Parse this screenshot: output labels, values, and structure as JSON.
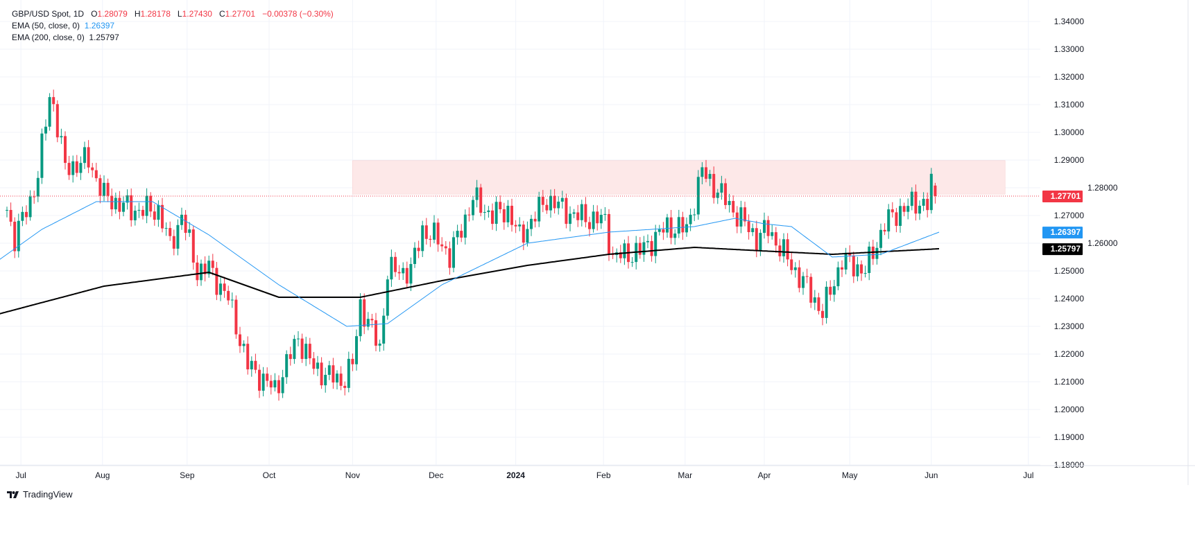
{
  "legend": {
    "symbol": "GBP/USD Spot, 1D",
    "open_label": "O",
    "open": "1.28079",
    "high_label": "H",
    "high": "1.28178",
    "low_label": "L",
    "low": "1.27430",
    "close_label": "C",
    "close": "1.27701",
    "change": "−0.00378 (−0.30%)",
    "ema50_label": "EMA (50, close, 0)",
    "ema50_value": "1.26397",
    "ema200_label": "EMA (200, close, 0)",
    "ema200_value": "1.25797"
  },
  "branding": "TradingView",
  "colors": {
    "up": "#089981",
    "down": "#f23645",
    "ema50": "#2196f3",
    "ema200": "#000000",
    "zone": "#fde8e8"
  },
  "chart_data": {
    "type": "candlestick",
    "title": "GBP/USD Spot, 1D",
    "ylim": [
      1.175,
      1.345
    ],
    "y_ticks": [
      "1.34000",
      "1.33000",
      "1.32000",
      "1.31000",
      "1.30000",
      "1.29000",
      "1.28000",
      "1.27000",
      "1.26000",
      "1.25000",
      "1.24000",
      "1.23000",
      "1.22000",
      "1.21000",
      "1.20000",
      "1.19000",
      "1.18000"
    ],
    "x_ticks": [
      {
        "label": "Jul",
        "bar": 3.6
      },
      {
        "label": "Aug",
        "bar": 24.6
      },
      {
        "label": "Sep",
        "bar": 46.4
      },
      {
        "label": "Oct",
        "bar": 67.5
      },
      {
        "label": "Nov",
        "bar": 89
      },
      {
        "label": "Dec",
        "bar": 110.5
      },
      {
        "label": "2024",
        "bar": 131
      },
      {
        "label": "Feb",
        "bar": 153.6
      },
      {
        "label": "Mar",
        "bar": 174.6
      },
      {
        "label": "Apr",
        "bar": 195
      },
      {
        "label": "May",
        "bar": 217
      },
      {
        "label": "Jun",
        "bar": 238
      },
      {
        "label": "Jul",
        "bar": 263
      }
    ],
    "close_path": [
      [
        0,
        1.272
      ],
      [
        2,
        1.262
      ],
      [
        6,
        1.275
      ],
      [
        8,
        1.285
      ],
      [
        11,
        1.313
      ],
      [
        12,
        1.31
      ],
      [
        15,
        1.287
      ],
      [
        21,
        1.29
      ],
      [
        25,
        1.277
      ],
      [
        32,
        1.272
      ],
      [
        39,
        1.272
      ],
      [
        42,
        1.259
      ],
      [
        45,
        1.27
      ],
      [
        49,
        1.25
      ],
      [
        52,
        1.251
      ],
      [
        57,
        1.24
      ],
      [
        62,
        1.216
      ],
      [
        69,
        1.207
      ],
      [
        75,
        1.226
      ],
      [
        79,
        1.215
      ],
      [
        86,
        1.21
      ],
      [
        89,
        1.216
      ],
      [
        91,
        1.238
      ],
      [
        96,
        1.222
      ],
      [
        98,
        1.25
      ],
      [
        104,
        1.25
      ],
      [
        107,
        1.265
      ],
      [
        112,
        1.26
      ],
      [
        114,
        1.255
      ],
      [
        120,
        1.276
      ],
      [
        125,
        1.27
      ],
      [
        129,
        1.272
      ],
      [
        132,
        1.262
      ],
      [
        139,
        1.276
      ],
      [
        146,
        1.27
      ],
      [
        154,
        1.268
      ],
      [
        156,
        1.255
      ],
      [
        163,
        1.257
      ],
      [
        170,
        1.266
      ],
      [
        175,
        1.265
      ],
      [
        179,
        1.286
      ],
      [
        187,
        1.272
      ],
      [
        193,
        1.262
      ],
      [
        196,
        1.265
      ],
      [
        202,
        1.252
      ],
      [
        206,
        1.244
      ],
      [
        210,
        1.235
      ],
      [
        215,
        1.254
      ],
      [
        221,
        1.25
      ],
      [
        226,
        1.267
      ],
      [
        230,
        1.272
      ],
      [
        235,
        1.275
      ],
      [
        237,
        1.274
      ],
      [
        238,
        1.2808
      ]
    ],
    "last_bar": {
      "bar": 239,
      "open": 1.28079,
      "high": 1.28178,
      "low": 1.2743,
      "close": 1.27701
    },
    "ema50": [
      [
        -2,
        1.254
      ],
      [
        9,
        1.265
      ],
      [
        23,
        1.275
      ],
      [
        37.5,
        1.275
      ],
      [
        52,
        1.263
      ],
      [
        70,
        1.245
      ],
      [
        87.5,
        1.23
      ],
      [
        98,
        1.231
      ],
      [
        112,
        1.245
      ],
      [
        134,
        1.26
      ],
      [
        155,
        1.264
      ],
      [
        177,
        1.266
      ],
      [
        187.5,
        1.269
      ],
      [
        195,
        1.267
      ],
      [
        202,
        1.266
      ],
      [
        212.5,
        1.255
      ],
      [
        225,
        1.256
      ],
      [
        240,
        1.264
      ]
    ],
    "ema200": [
      [
        -2,
        1.2345
      ],
      [
        25,
        1.2445
      ],
      [
        52,
        1.2495
      ],
      [
        70,
        1.2405
      ],
      [
        91,
        1.2405
      ],
      [
        112,
        1.2465
      ],
      [
        134,
        1.252
      ],
      [
        155,
        1.256
      ],
      [
        177,
        1.2585
      ],
      [
        195,
        1.2572
      ],
      [
        212.5,
        1.256
      ],
      [
        240,
        1.258
      ]
    ],
    "resistance_zone": {
      "bar_from": 89,
      "bar_to": 257,
      "price_low": 1.2777,
      "price_high": 1.2898
    },
    "price_labels": {
      "last": "1.27701",
      "ema50": "1.26397",
      "ema200": "1.25797"
    }
  }
}
